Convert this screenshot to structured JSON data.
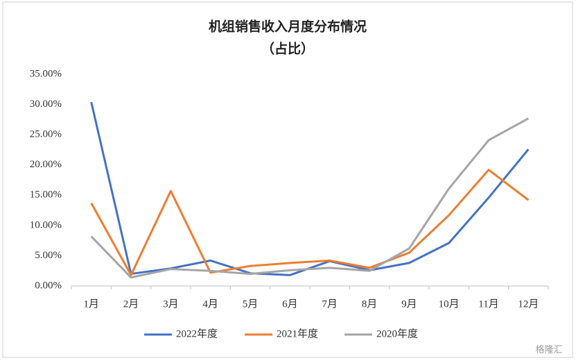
{
  "chart_data": {
    "type": "line",
    "title": "机组销售收入月度分布情况",
    "subtitle": "（占比）",
    "categories": [
      "1月",
      "2月",
      "3月",
      "4月",
      "5月",
      "6月",
      "7月",
      "8月",
      "9月",
      "10月",
      "11月",
      "12月"
    ],
    "series": [
      {
        "name": "2022年度",
        "color": "#4472c4",
        "values": [
          30.4,
          2.0,
          2.9,
          4.2,
          2.1,
          1.8,
          4.1,
          2.6,
          3.8,
          7.1,
          14.6,
          22.6
        ]
      },
      {
        "name": "2021年度",
        "color": "#ed7d31",
        "values": [
          13.7,
          1.8,
          15.7,
          2.2,
          3.3,
          3.8,
          4.2,
          3.0,
          5.5,
          11.7,
          19.2,
          14.2
        ]
      },
      {
        "name": "2020年度",
        "color": "#a5a5a5",
        "values": [
          8.2,
          1.4,
          2.8,
          2.5,
          2.0,
          2.6,
          3.0,
          2.5,
          6.2,
          16.1,
          24.1,
          27.7
        ]
      }
    ],
    "ylim": [
      0,
      35
    ],
    "yticks": [
      {
        "value": 0,
        "label": "0.00%"
      },
      {
        "value": 5,
        "label": "5.00%"
      },
      {
        "value": 10,
        "label": "10.00%"
      },
      {
        "value": 15,
        "label": "15.00%"
      },
      {
        "value": 20,
        "label": "20.00%"
      },
      {
        "value": 25,
        "label": "25.00%"
      },
      {
        "value": 30,
        "label": "30.00%"
      },
      {
        "value": 35,
        "label": "35.00%"
      }
    ],
    "grid": false,
    "legend": "bottom",
    "watermark": "格隆汇"
  }
}
